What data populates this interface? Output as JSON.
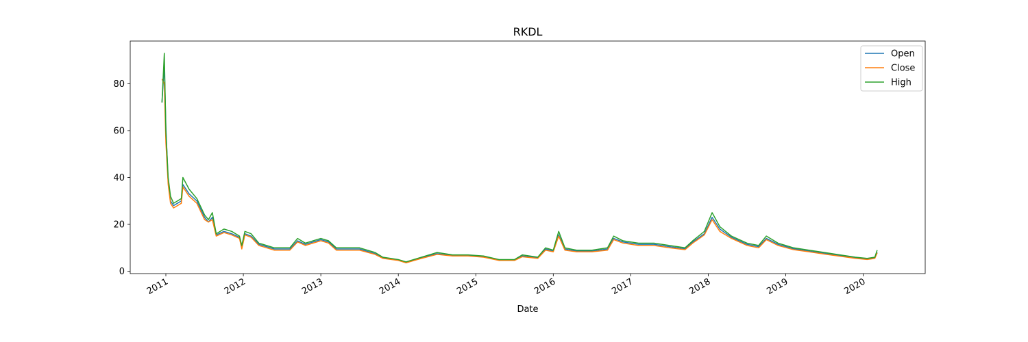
{
  "chart_data": {
    "type": "line",
    "title": "RKDL",
    "x_label": "Date",
    "x": [
      2010.95,
      2010.98,
      2011.0,
      2011.03,
      2011.06,
      2011.1,
      2011.15,
      2011.2,
      2011.22,
      2011.3,
      2011.4,
      2011.5,
      2011.55,
      2011.6,
      2011.65,
      2011.75,
      2011.85,
      2011.95,
      2011.98,
      2012.02,
      2012.1,
      2012.2,
      2012.4,
      2012.6,
      2012.7,
      2012.8,
      2013.0,
      2013.1,
      2013.2,
      2013.5,
      2013.7,
      2013.8,
      2014.0,
      2014.1,
      2014.3,
      2014.5,
      2014.7,
      2014.9,
      2015.1,
      2015.3,
      2015.5,
      2015.6,
      2015.8,
      2015.9,
      2016.0,
      2016.07,
      2016.15,
      2016.3,
      2016.5,
      2016.7,
      2016.78,
      2016.9,
      2017.1,
      2017.3,
      2017.5,
      2017.7,
      2017.8,
      2017.95,
      2018.05,
      2018.15,
      2018.3,
      2018.5,
      2018.65,
      2018.75,
      2018.9,
      2019.1,
      2019.3,
      2019.5,
      2019.7,
      2019.9,
      2020.05,
      2020.15,
      2020.18
    ],
    "series": [
      {
        "name": "Open",
        "color": "#1f77b4",
        "values": [
          72,
          88,
          62,
          38,
          30,
          28,
          29,
          30,
          37,
          33,
          30,
          23,
          21,
          23,
          15.5,
          17,
          16,
          14.5,
          10,
          16,
          15,
          11.5,
          9.5,
          9.5,
          13,
          11.5,
          13.5,
          12.5,
          9.5,
          9.5,
          7.5,
          5.8,
          4.8,
          3.8,
          5.7,
          7.5,
          6.7,
          6.7,
          6.2,
          4.8,
          4.8,
          6.5,
          5.7,
          9.5,
          8.6,
          15.5,
          9.5,
          8.6,
          8.6,
          9.5,
          14,
          12.5,
          11.5,
          11.5,
          10.5,
          9.6,
          12.5,
          16,
          23,
          18,
          14.5,
          11.5,
          10.5,
          14,
          11.5,
          9.6,
          8.6,
          7.6,
          6.7,
          5.7,
          5.2,
          5.7,
          8
        ]
      },
      {
        "name": "Close",
        "color": "#ff7f0e",
        "values": [
          82,
          80,
          55,
          37,
          29,
          27,
          28,
          29,
          36,
          32,
          29,
          22,
          21,
          22,
          15,
          16.5,
          15.5,
          14,
          9.5,
          15.5,
          14.5,
          11,
          9,
          9,
          12.5,
          11,
          13,
          12,
          9,
          9,
          7.2,
          5.5,
          4.6,
          3.6,
          5.5,
          7.2,
          6.5,
          6.5,
          6,
          4.6,
          4.6,
          6.2,
          5.5,
          9,
          8.3,
          15,
          9,
          8.3,
          8.3,
          9,
          13.5,
          12,
          11,
          11,
          10,
          9.2,
          12,
          15.5,
          22,
          17,
          14,
          11,
          10,
          13.5,
          11,
          9.2,
          8.3,
          7.3,
          6.4,
          5.5,
          5,
          5.5,
          7.8
        ]
      },
      {
        "name": "High",
        "color": "#2ca02c",
        "values": [
          72,
          93,
          60,
          40,
          32,
          29,
          30,
          31,
          40,
          35,
          31,
          24,
          22,
          25,
          16,
          18,
          17,
          15,
          11,
          17,
          16,
          12,
          10,
          10,
          14,
          12,
          14,
          13,
          10,
          10,
          8,
          6,
          5,
          4,
          6,
          8,
          7,
          7,
          6.5,
          5,
          5,
          7,
          6,
          10,
          9,
          17,
          10,
          9,
          9,
          10,
          15,
          13,
          12,
          12,
          11,
          10,
          13,
          17,
          25,
          19,
          15,
          12,
          11,
          15,
          12,
          10,
          9,
          8,
          7,
          6,
          5.5,
          6,
          9
        ]
      }
    ],
    "xlim": [
      2010.54,
      2020.8
    ],
    "xticks": [
      2011,
      2012,
      2013,
      2014,
      2015,
      2016,
      2017,
      2018,
      2019,
      2020
    ],
    "ylim": [
      -1.0,
      98.2
    ],
    "yticks": [
      0,
      20,
      40,
      60,
      80
    ],
    "legend": "upper right"
  }
}
